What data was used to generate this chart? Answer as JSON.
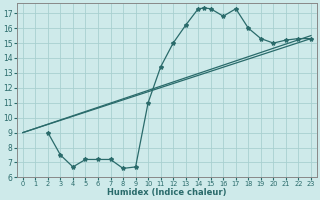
{
  "xlabel": "Humidex (Indice chaleur)",
  "bg_color": "#ceeaea",
  "grid_color": "#a8d0d0",
  "line_color": "#2a6b6b",
  "xlim": [
    -0.5,
    23.5
  ],
  "ylim": [
    6,
    17.7
  ],
  "xticks": [
    0,
    1,
    2,
    3,
    4,
    5,
    6,
    7,
    8,
    9,
    10,
    11,
    12,
    13,
    14,
    15,
    16,
    17,
    18,
    19,
    20,
    21,
    22,
    23
  ],
  "yticks": [
    6,
    7,
    8,
    9,
    10,
    11,
    12,
    13,
    14,
    15,
    16,
    17
  ],
  "line1_x": [
    2,
    3,
    4,
    5,
    6,
    7,
    8,
    9,
    10,
    11,
    12,
    13,
    14,
    14.5,
    15,
    16,
    17,
    18,
    19,
    20,
    21,
    22,
    23
  ],
  "line1_y": [
    9.0,
    7.5,
    6.7,
    7.2,
    7.2,
    7.2,
    6.6,
    6.7,
    11.0,
    13.4,
    15.0,
    16.2,
    17.3,
    17.35,
    17.3,
    16.8,
    17.3,
    16.0,
    15.3,
    15.0,
    15.2,
    15.3,
    15.3
  ],
  "line2_x": [
    0,
    23
  ],
  "line2_y": [
    9.0,
    15.3
  ],
  "line3_x": [
    0,
    23
  ],
  "line3_y": [
    9.0,
    15.5
  ]
}
